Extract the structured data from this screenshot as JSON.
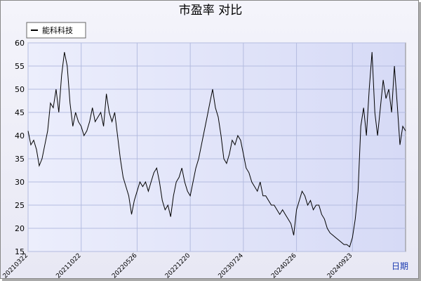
{
  "chart_data": {
    "type": "line",
    "title": "市盈率  对比",
    "xlabel": "日期",
    "series": [
      {
        "name": "能科科技",
        "color": "#000000",
        "values": [
          41,
          38,
          39,
          37,
          33.5,
          35,
          38,
          41,
          47,
          46,
          50,
          45,
          53,
          58,
          55,
          47,
          42,
          45,
          43,
          42,
          40,
          41,
          43,
          46,
          43,
          44,
          45,
          42,
          49,
          45,
          43,
          45,
          40,
          35,
          31,
          29,
          27,
          23,
          26,
          28,
          30,
          29,
          30,
          28,
          30,
          32,
          33,
          30,
          26,
          24,
          25,
          22.5,
          27,
          30,
          31,
          33,
          30,
          28,
          27,
          30,
          33,
          35,
          38,
          41,
          44,
          47,
          50,
          46,
          44,
          40,
          35,
          34,
          36,
          39,
          38,
          40,
          39,
          36,
          33,
          32,
          30,
          29,
          28,
          30,
          27,
          27,
          26,
          25,
          25,
          24,
          23,
          24,
          23,
          22,
          21,
          18.5,
          24,
          26,
          28,
          27,
          25,
          26,
          24,
          25,
          25,
          23,
          22,
          20,
          19,
          18.5,
          18,
          17.5,
          17,
          16.5,
          16.5,
          16,
          18,
          22,
          28,
          42,
          46,
          40,
          50,
          58,
          45,
          40,
          46,
          52,
          48,
          50,
          45,
          55,
          47,
          38,
          42,
          41
        ]
      }
    ],
    "xlim": [
      0,
      135
    ],
    "xticks": [
      {
        "value": 0,
        "label": "20210322"
      },
      {
        "value": 19,
        "label": "20211022"
      },
      {
        "value": 39,
        "label": "20220526"
      },
      {
        "value": 58,
        "label": "20221220"
      },
      {
        "value": 77,
        "label": "20230724"
      },
      {
        "value": 96,
        "label": "20240226"
      },
      {
        "value": 116,
        "label": "20240923"
      }
    ],
    "ylim": [
      15,
      60
    ],
    "yticks": [
      15,
      20,
      25,
      30,
      35,
      40,
      45,
      50,
      55,
      60
    ],
    "grid": true,
    "legend": "upper left"
  }
}
